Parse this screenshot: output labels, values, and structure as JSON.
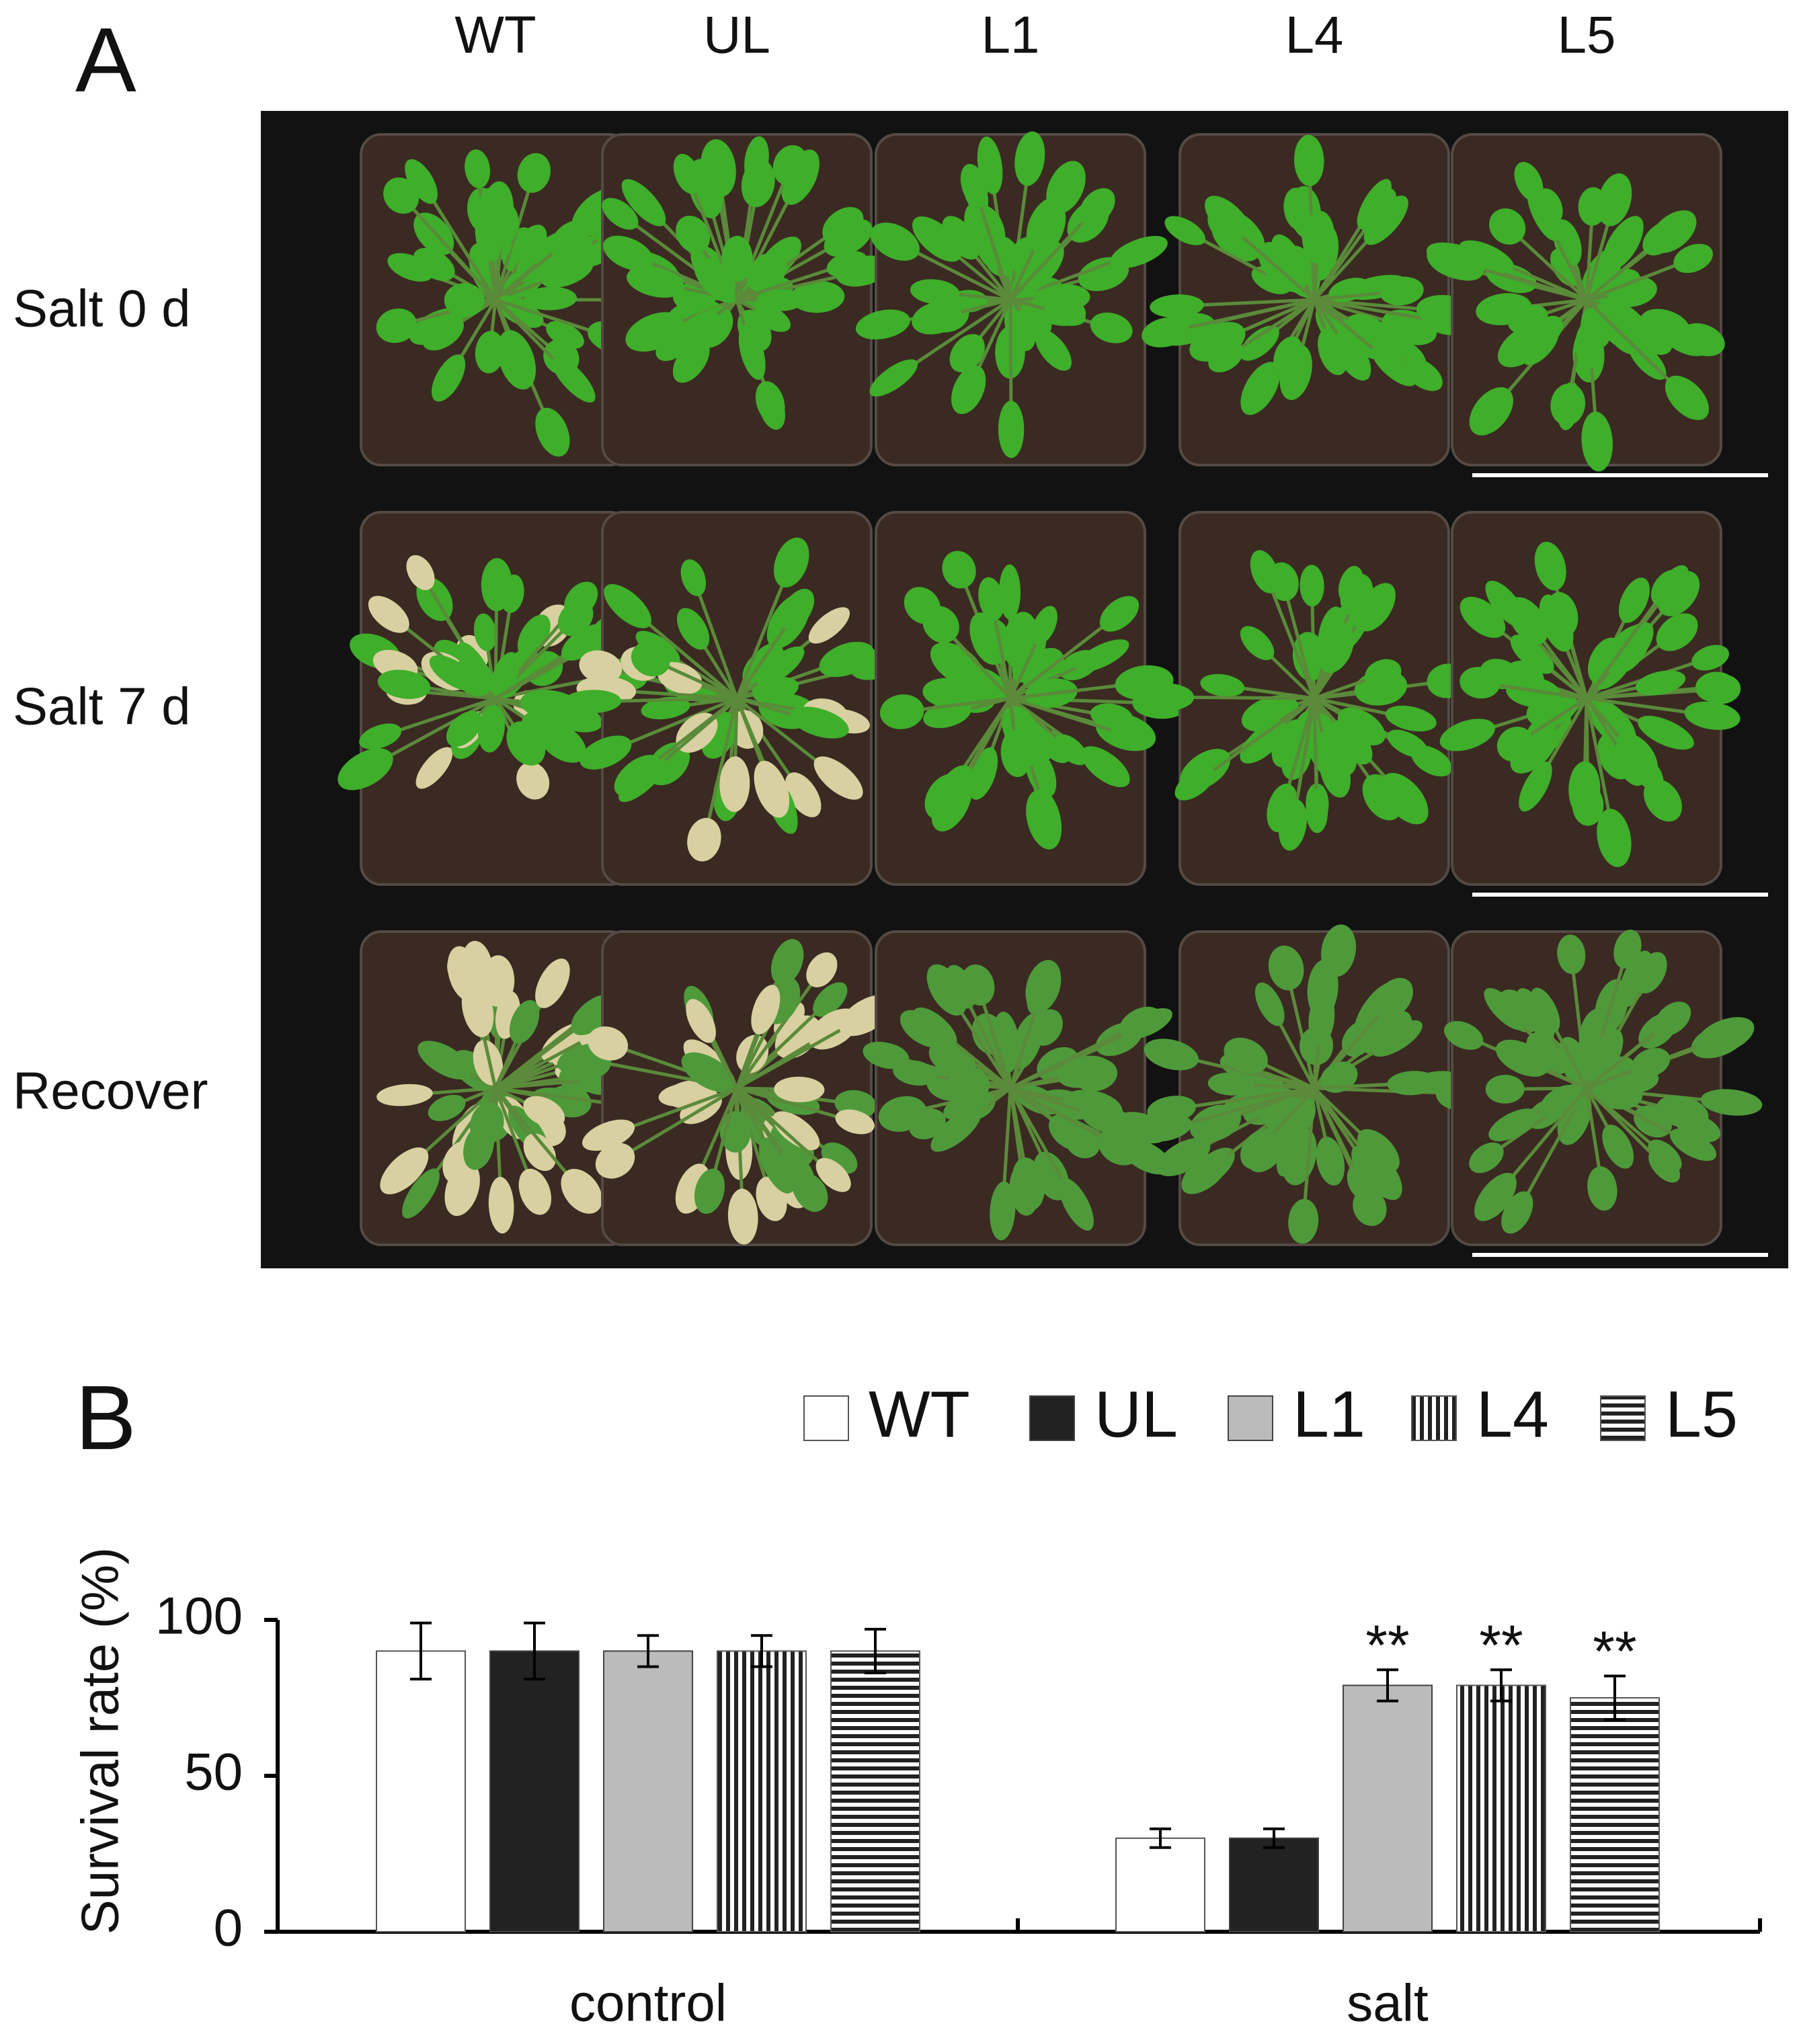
{
  "panel_labels": [
    "A",
    "B"
  ],
  "photo": {
    "columns": [
      "WT",
      "UL",
      "L1",
      "L4",
      "L5"
    ],
    "rows": [
      "Salt 0 d",
      "Salt 7 d",
      "Recover"
    ]
  },
  "chart_data": {
    "type": "bar",
    "ylabel": "Survival rate (%)",
    "categories": [
      "control",
      "salt"
    ],
    "series": [
      {
        "name": "WT",
        "color": "#ffffff",
        "pattern": "solid",
        "values": [
          90,
          30
        ],
        "errors": [
          9,
          3
        ]
      },
      {
        "name": "UL",
        "color": "#222222",
        "pattern": "solid",
        "values": [
          90,
          30
        ],
        "errors": [
          9,
          3
        ]
      },
      {
        "name": "L1",
        "color": "#bbbbbb",
        "pattern": "solid",
        "values": [
          90,
          79
        ],
        "errors": [
          5,
          5
        ]
      },
      {
        "name": "L4",
        "color": "#222222",
        "pattern": "vertical",
        "values": [
          90,
          79
        ],
        "errors": [
          5,
          5
        ]
      },
      {
        "name": "L5",
        "color": "#222222",
        "pattern": "horizontal",
        "values": [
          90,
          75
        ],
        "errors": [
          7,
          7
        ]
      }
    ],
    "annotations": [
      {
        "text": "**",
        "series": 2,
        "category": 1
      },
      {
        "text": "**",
        "series": 3,
        "category": 1
      },
      {
        "text": "**",
        "series": 4,
        "category": 1
      }
    ],
    "ylim": [
      0,
      100
    ],
    "yticks": [
      0,
      50,
      100
    ],
    "legend": "top"
  }
}
